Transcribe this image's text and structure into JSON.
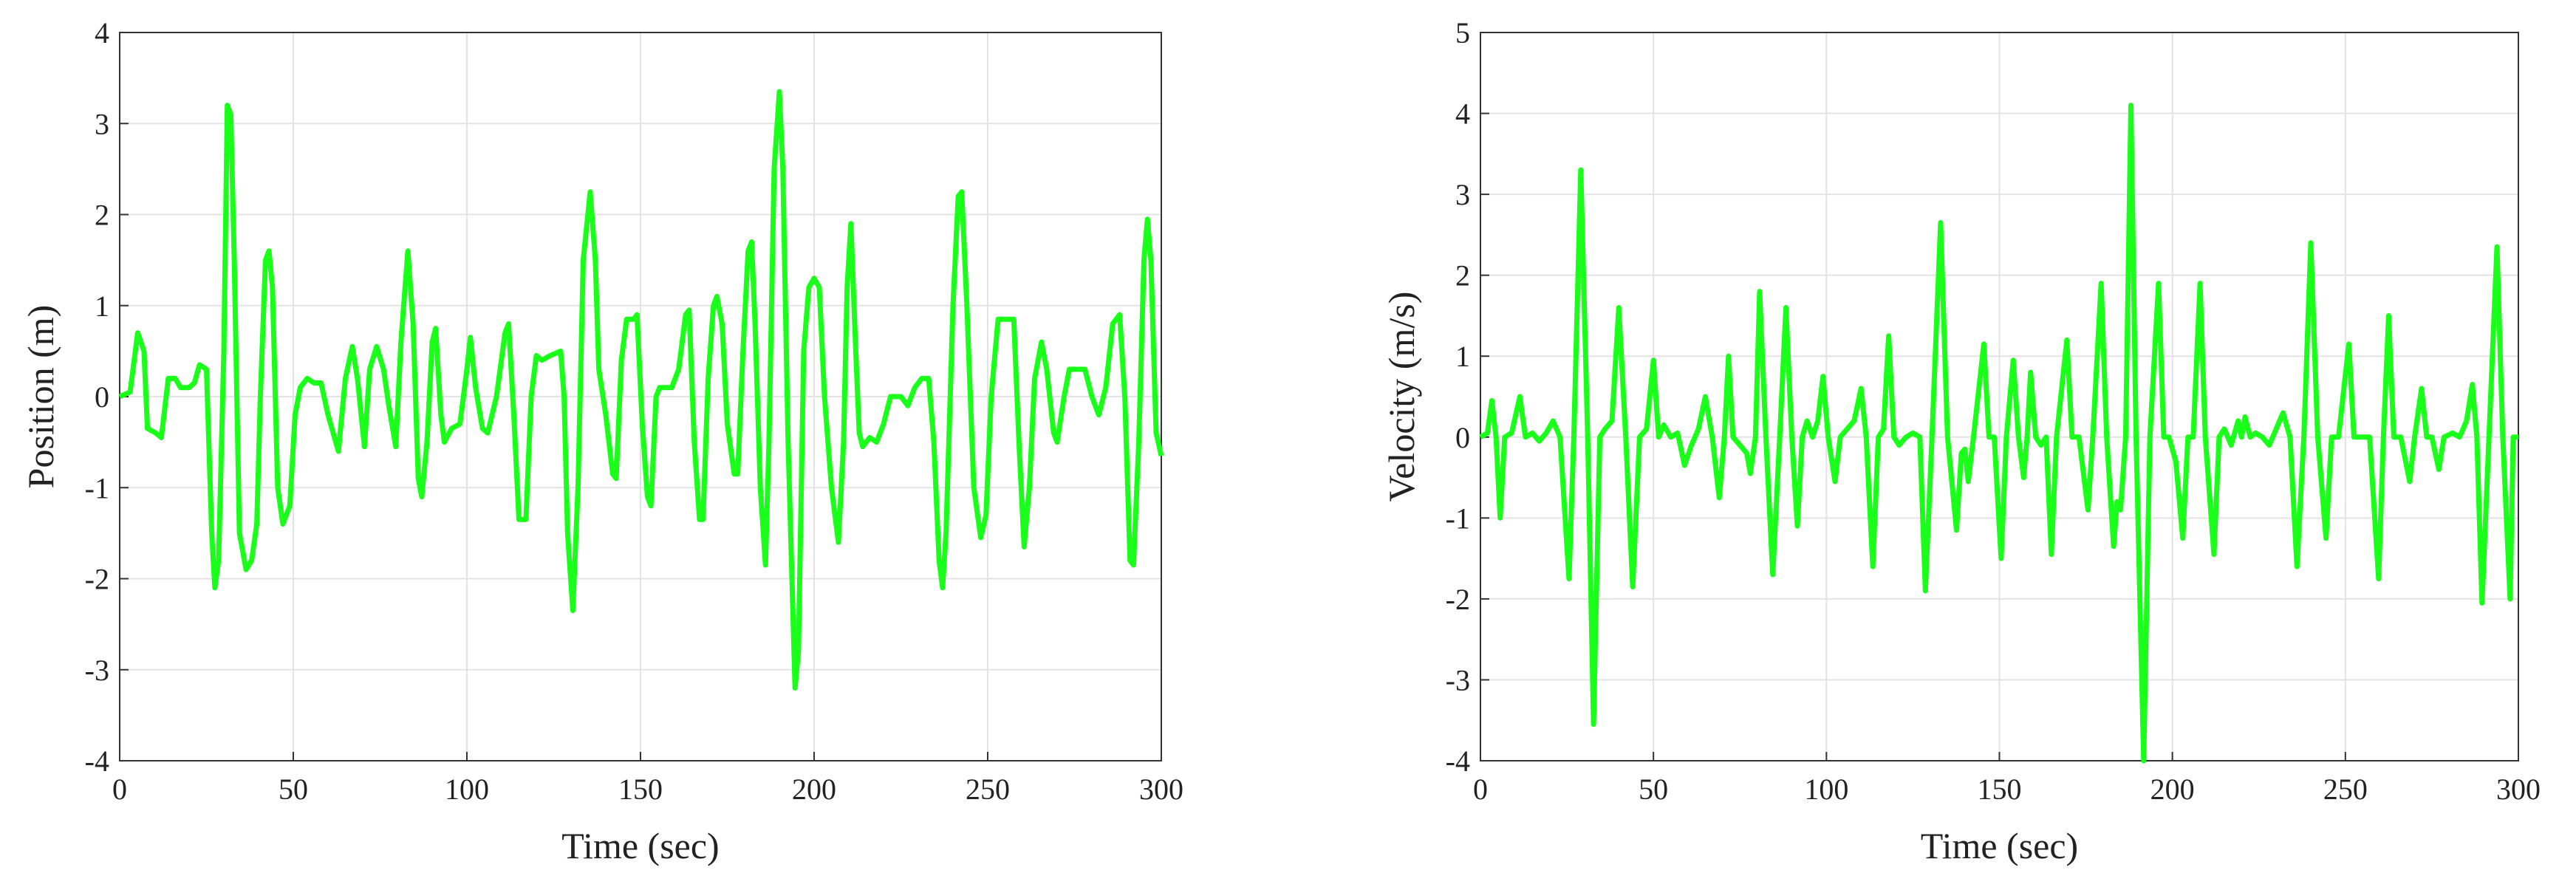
{
  "chart_data": [
    {
      "type": "line",
      "xlabel": "Time (sec)",
      "ylabel": "Position (m)",
      "x": [
        0,
        3,
        5.2,
        7,
        8,
        10.4,
        12,
        14,
        16,
        17.5,
        20,
        21.5,
        23,
        25,
        26.5,
        27.4,
        28.5,
        30,
        31,
        32,
        33,
        34.5,
        36.4,
        38,
        39.5,
        40.5,
        42,
        43,
        44,
        45.5,
        47,
        49,
        50.5,
        52,
        54,
        56,
        58,
        60,
        63,
        65,
        67,
        68.5,
        70.5,
        72,
        74,
        76,
        77.5,
        79.5,
        81,
        83,
        84.5,
        86,
        87,
        88.5,
        90,
        91,
        92.5,
        93.5,
        95.6,
        98,
        100,
        101,
        102.5,
        104.5,
        106,
        108.5,
        111,
        112,
        113.5,
        115,
        117,
        118.5,
        120,
        121.6,
        124,
        127,
        128,
        129,
        130.5,
        132,
        133.5,
        135.5,
        137,
        138,
        140,
        142,
        143,
        144.5,
        146,
        148,
        149,
        150.5,
        152,
        153,
        154.5,
        155.5,
        157,
        159,
        161,
        163,
        164,
        165.5,
        167,
        168,
        169.5,
        171,
        172,
        173.5,
        175,
        177,
        178,
        179.5,
        181,
        182,
        183,
        184.5,
        186,
        187,
        188.5,
        190,
        191,
        192.5,
        194.5,
        195.5,
        197,
        198.5,
        200,
        201.5,
        203,
        205,
        207,
        208.5,
        209.5,
        210.6,
        212,
        213,
        214,
        216,
        218,
        220,
        222,
        225,
        227,
        229,
        231,
        233,
        234.5,
        236,
        237,
        238,
        240,
        241.5,
        242.5,
        244,
        246,
        248,
        249.5,
        251,
        253,
        255,
        257.5,
        259,
        260.5,
        262,
        263.5,
        265.5,
        267,
        269,
        270,
        272,
        273.5,
        276,
        278,
        280,
        282,
        284,
        286,
        288,
        289.5,
        291,
        292,
        293.5,
        295,
        296,
        297,
        298.5,
        300
      ],
      "series": [
        {
          "color": "#1aff1a",
          "values": [
            0,
            0.05,
            0.7,
            0.5,
            -0.35,
            -0.4,
            -0.45,
            0.2,
            0.2,
            0.1,
            0.1,
            0.15,
            0.35,
            0.3,
            -1.5,
            -2.1,
            -1.8,
            0.5,
            3.2,
            3.1,
            1.5,
            -1.5,
            -1.9,
            -1.8,
            -1.4,
            0,
            1.5,
            1.6,
            1.2,
            -1.0,
            -1.4,
            -1.2,
            -0.2,
            0.1,
            0.2,
            0.15,
            0.15,
            -0.2,
            -0.6,
            0.2,
            0.55,
            0.2,
            -0.55,
            0.3,
            0.55,
            0.3,
            -0.1,
            -0.55,
            0.6,
            1.6,
            0.8,
            -0.9,
            -1.1,
            -0.5,
            0.6,
            0.75,
            -0.2,
            -0.5,
            -0.35,
            -0.3,
            0.3,
            0.65,
            0.1,
            -0.35,
            -0.4,
            0,
            0.7,
            0.8,
            -0.2,
            -1.35,
            -1.35,
            0,
            0.45,
            0.4,
            0.45,
            0.5,
            0,
            -1.5,
            -2.35,
            -1.0,
            1.5,
            2.25,
            1.5,
            0.3,
            -0.2,
            -0.85,
            -0.9,
            0.4,
            0.85,
            0.85,
            0.9,
            -0.3,
            -1.1,
            -1.2,
            0,
            0.1,
            0.1,
            0.1,
            0.3,
            0.9,
            0.95,
            -0.5,
            -1.35,
            -1.35,
            0.2,
            1.0,
            1.1,
            0.8,
            -0.3,
            -0.85,
            -0.85,
            0.5,
            1.6,
            1.7,
            0.8,
            -1.0,
            -1.85,
            -0.5,
            2.5,
            3.35,
            2.5,
            -0.5,
            -3.2,
            -2.8,
            0.5,
            1.2,
            1.3,
            1.2,
            0,
            -1.0,
            -1.6,
            -0.5,
            1.2,
            1.9,
            0.5,
            -0.4,
            -0.55,
            -0.45,
            -0.5,
            -0.3,
            0,
            0,
            -0.1,
            0.1,
            0.2,
            0.2,
            -0.5,
            -1.8,
            -2.1,
            -1.5,
            1.0,
            2.2,
            2.25,
            1.0,
            -1.0,
            -1.55,
            -1.3,
            0,
            0.85,
            0.85,
            0.85,
            -0.5,
            -1.65,
            -1.0,
            0.2,
            0.6,
            0.3,
            -0.4,
            -0.5,
            0,
            0.3,
            0.3,
            0.3,
            0,
            -0.2,
            0.1,
            0.8,
            0.9,
            0,
            -1.8,
            -1.85,
            -0.5,
            1.5,
            1.95,
            1.5,
            -0.4,
            -0.65
          ]
        }
      ],
      "xlim": [
        0,
        300
      ],
      "ylim": [
        -4,
        4
      ],
      "xticks": [
        0,
        50,
        100,
        150,
        200,
        250,
        300
      ],
      "yticks": [
        -4,
        -3,
        -2,
        -1,
        0,
        1,
        2,
        3,
        4
      ],
      "grid": true
    },
    {
      "type": "line",
      "xlabel": "Time (sec)",
      "ylabel": "Velocity (m/s)",
      "x": [
        0,
        2,
        3.3,
        4.5,
        5.7,
        7,
        9,
        11.4,
        13,
        15,
        17,
        19,
        21,
        23,
        25.6,
        27,
        29,
        31,
        32.7,
        34.5,
        36,
        38,
        40,
        42,
        44,
        46,
        48,
        50,
        51.5,
        53,
        55,
        57,
        59,
        61,
        63,
        65,
        67,
        69,
        70.5,
        71.7,
        73,
        75,
        77,
        78,
        79.5,
        80.7,
        82.5,
        84.5,
        86.5,
        88.3,
        90,
        91.6,
        93,
        94.4,
        96,
        97.5,
        99,
        100.5,
        102.5,
        104,
        106,
        108,
        110,
        111.5,
        113.4,
        115,
        116.5,
        118,
        119.5,
        121,
        123,
        125,
        127,
        128.6,
        130.5,
        133,
        135,
        137.6,
        139,
        140,
        141,
        142.5,
        145.5,
        147,
        148.5,
        150.5,
        152,
        154,
        155.5,
        157,
        158,
        159,
        160.5,
        162,
        163.5,
        165,
        166.5,
        169.5,
        171,
        173,
        175.6,
        177,
        179.4,
        181,
        183,
        184,
        185,
        186.5,
        188,
        189.5,
        191.7,
        193.5,
        196,
        197.5,
        199,
        201,
        203,
        204.5,
        206,
        208,
        209.5,
        212,
        213.5,
        215,
        217,
        219,
        220,
        221,
        222.5,
        224,
        226,
        228,
        230,
        232,
        234,
        236,
        238,
        240,
        242,
        244.4,
        246,
        248,
        251,
        252.5,
        255,
        257,
        259.6,
        261,
        262.5,
        264,
        266,
        268.6,
        270,
        272,
        273.5,
        275,
        277,
        278.5,
        281,
        283,
        285,
        286.7,
        288,
        289.5,
        291.5,
        293.8,
        295.5,
        297.6,
        298.5,
        300
      ],
      "series": [
        {
          "color": "#1aff1a",
          "values": [
            0,
            0.05,
            0.45,
            0,
            -1.0,
            0,
            0.05,
            0.5,
            0,
            0.05,
            -0.05,
            0.05,
            0.2,
            0,
            -1.75,
            0,
            3.3,
            0,
            -3.55,
            0,
            0.1,
            0.2,
            1.6,
            0,
            -1.85,
            0,
            0.1,
            0.95,
            0,
            0.15,
            0,
            0.05,
            -0.35,
            -0.1,
            0.1,
            0.5,
            0,
            -0.75,
            0,
            1.0,
            0,
            -0.1,
            -0.2,
            -0.45,
            0,
            1.8,
            0,
            -1.7,
            0,
            1.6,
            0,
            -1.1,
            0,
            0.2,
            0,
            0.2,
            0.75,
            0,
            -0.55,
            0,
            0.1,
            0.2,
            0.6,
            0,
            -1.6,
            0,
            0.1,
            1.25,
            0,
            -0.1,
            0,
            0.05,
            0,
            -1.9,
            0,
            2.65,
            0,
            -1.15,
            -0.2,
            -0.15,
            -0.55,
            0,
            1.15,
            0,
            0,
            -1.5,
            0,
            0.95,
            0,
            -0.5,
            0,
            0.8,
            0,
            -0.1,
            0,
            -1.45,
            0,
            1.2,
            0,
            0,
            -0.9,
            0,
            1.9,
            0,
            -1.35,
            -0.8,
            -0.9,
            0,
            4.1,
            0,
            -4.0,
            0,
            1.9,
            0,
            0,
            -0.3,
            -1.25,
            0,
            0,
            1.9,
            0,
            -1.45,
            0,
            0.1,
            -0.1,
            0.2,
            0,
            0.25,
            0,
            0.05,
            0,
            -0.1,
            0.1,
            0.3,
            0,
            -1.6,
            0,
            2.4,
            0,
            -1.25,
            0,
            0,
            1.15,
            0,
            0,
            0,
            -1.75,
            0,
            1.5,
            0,
            0,
            -0.55,
            0,
            0.6,
            0,
            0,
            -0.4,
            0,
            0.05,
            0,
            0.2,
            0.65,
            0,
            -2.05,
            0,
            2.35,
            0,
            -2.0,
            0,
            0
          ]
        }
      ],
      "xlim": [
        0,
        300
      ],
      "ylim": [
        -4,
        5
      ],
      "xticks": [
        0,
        50,
        100,
        150,
        200,
        250,
        300
      ],
      "yticks": [
        -4,
        -3,
        -2,
        -1,
        0,
        1,
        2,
        3,
        4,
        5
      ],
      "grid": true
    }
  ]
}
